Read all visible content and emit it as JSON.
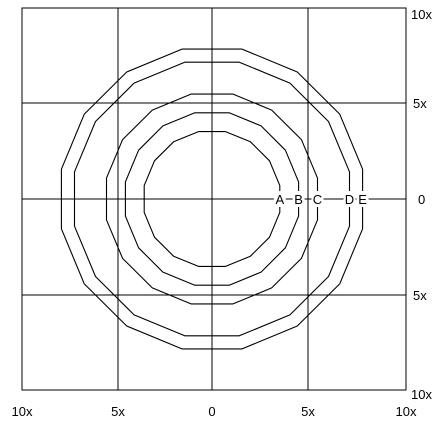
{
  "axis_labels": {
    "bottom": [
      "10x",
      "5x",
      "0",
      "5x",
      "10x"
    ],
    "right": [
      "10x",
      "5x",
      "0",
      "5x",
      "10x"
    ]
  },
  "curves": [
    {
      "label": "A",
      "radius": 3.6
    },
    {
      "label": "B",
      "radius": 4.6
    },
    {
      "label": "C",
      "radius": 5.6
    },
    {
      "label": "D",
      "radius": 7.3
    },
    {
      "label": "E",
      "radius": 8.0
    }
  ],
  "range": [
    -10,
    10
  ]
}
